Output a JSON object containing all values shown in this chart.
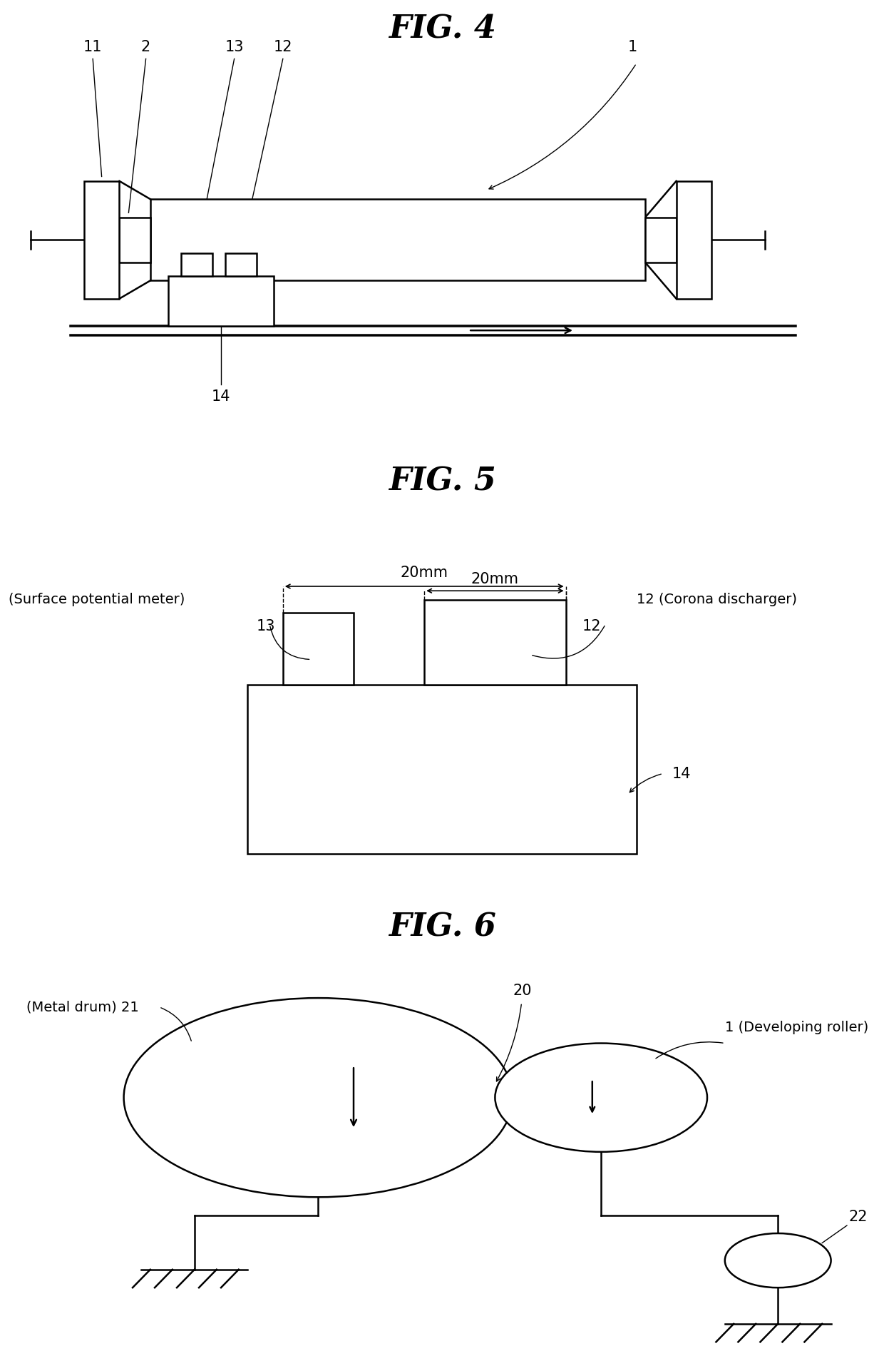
{
  "bg_color": "#ffffff",
  "line_color": "#000000",
  "fig4_title": "FIG. 4",
  "fig5_title": "FIG. 5",
  "fig6_title": "FIG. 6",
  "title_fontsize": 32,
  "label_fontsize": 15,
  "lw": 1.8
}
